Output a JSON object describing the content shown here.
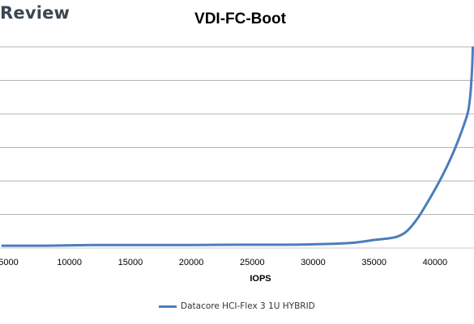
{
  "branding": {
    "logo_text": "Review"
  },
  "chart_data": {
    "type": "line",
    "title": "VDI-FC-Boot",
    "xlabel": "IOPS",
    "ylabel": "",
    "xticks": [
      5000,
      10000,
      15000,
      20000,
      25000,
      30000,
      35000,
      40000
    ],
    "xlim": [
      4300,
      43200
    ],
    "ylim": [
      0,
      6
    ],
    "grid": true,
    "legend_position": "bottom",
    "series": [
      {
        "name": "Datacore HCI-Flex 3 1U HYBRID",
        "color": "#4a7ebb",
        "x": [
          4500,
          8000,
          12000,
          16000,
          20000,
          24000,
          28000,
          31000,
          33000,
          34000,
          35000,
          36000,
          36800,
          37500,
          38000,
          38600,
          39200,
          40000,
          40800,
          41500,
          42000,
          42400,
          42700,
          42850,
          42950,
          43050,
          43100
        ],
        "y": [
          0.07,
          0.07,
          0.09,
          0.09,
          0.09,
          0.1,
          0.1,
          0.12,
          0.15,
          0.19,
          0.24,
          0.28,
          0.33,
          0.45,
          0.62,
          0.9,
          1.25,
          1.75,
          2.3,
          2.85,
          3.3,
          3.7,
          4.05,
          4.4,
          4.8,
          5.4,
          5.98
        ]
      }
    ]
  }
}
